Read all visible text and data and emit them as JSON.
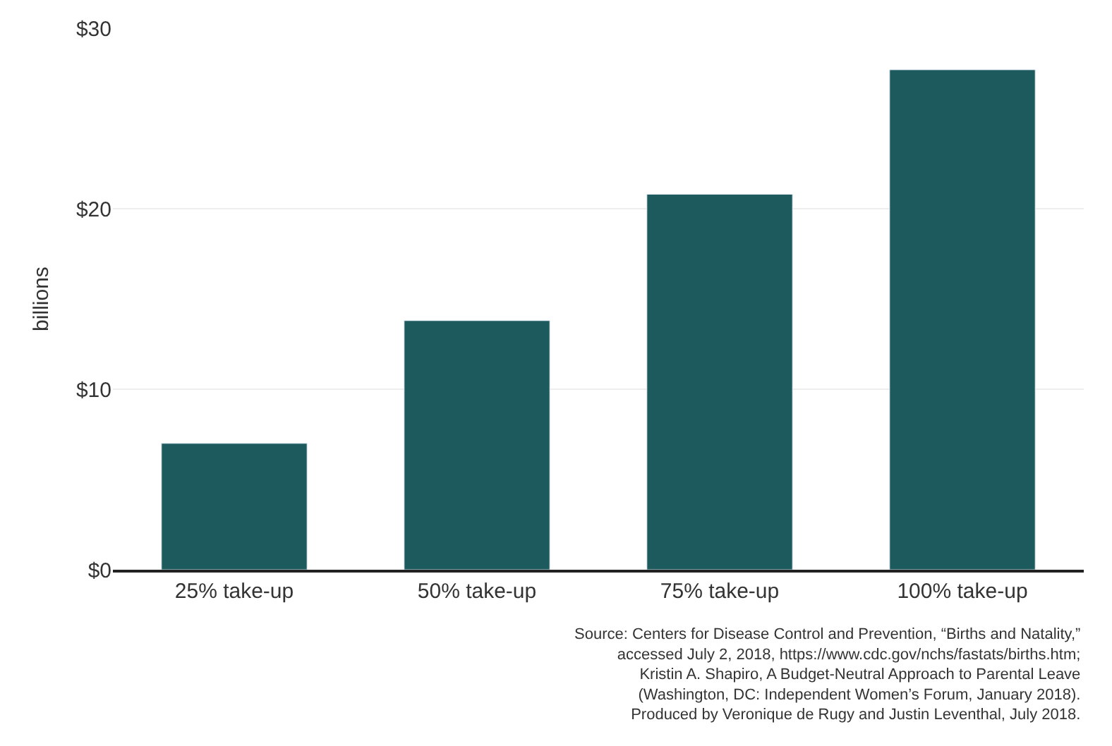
{
  "chart_data": {
    "type": "bar",
    "ylabel": "billions",
    "categories": [
      "25% take-up",
      "50% take-up",
      "75% take-up",
      "100% take-up"
    ],
    "values": [
      7,
      13.8,
      20.8,
      27.7
    ],
    "color": "#1d5a5e",
    "ylim": [
      0,
      30
    ],
    "yticks": [
      {
        "value": 0,
        "label": "$0"
      },
      {
        "value": 10,
        "label": "$10"
      },
      {
        "value": 20,
        "label": "$20"
      },
      {
        "value": 30,
        "label": "$30"
      }
    ],
    "grid": "y",
    "annotations": [
      "Source: Centers for Disease Control and Prevention, “Births and Natality,”\naccessed July 2, 2018, https://www.cdc.gov/nchs/fastats/births.htm;\nKristin A. Shapiro, A Budget-Neutral Approach to Parental Leave\n(Washington, DC: Independent Women’s Forum, January 2018).\nProduced by Veronique de Rugy and Justin Leventhal, July 2018."
    ]
  }
}
